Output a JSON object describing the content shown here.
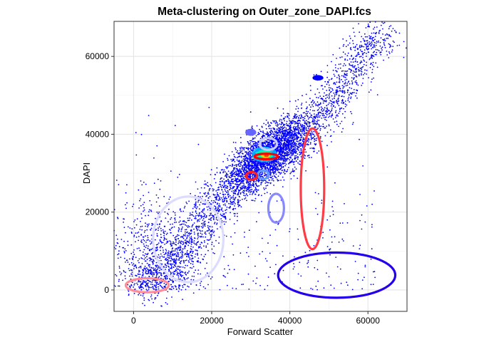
{
  "chart_data": {
    "type": "scatter",
    "title": "Meta-clustering on Outer_zone_DAPI.fcs",
    "xlabel": "Forward Scatter",
    "ylabel": "DAPI",
    "xlim": [
      -5000,
      70000
    ],
    "ylim": [
      -5500,
      69000
    ],
    "x_ticks": [
      0,
      20000,
      40000,
      60000
    ],
    "x_tick_labels": [
      "0",
      "20000",
      "40000",
      "60000"
    ],
    "y_ticks": [
      0,
      20000,
      40000,
      60000
    ],
    "y_tick_labels": [
      "0",
      "20000",
      "40000",
      "60000"
    ],
    "grid": true,
    "legend": "none",
    "point_color": "#0000FF",
    "density_core_colors": [
      "#00BFFF",
      "#00FFAA",
      "#FFD000",
      "#FF3000"
    ],
    "points": {
      "band": [
        [
          2000,
          1000
        ],
        [
          5000,
          2000
        ],
        [
          8000,
          4000
        ],
        [
          10000,
          7000
        ],
        [
          12000,
          9000
        ],
        [
          14000,
          12000
        ],
        [
          16000,
          15000
        ],
        [
          18000,
          18000
        ],
        [
          20000,
          21000
        ],
        [
          22000,
          23000
        ],
        [
          24000,
          25000
        ],
        [
          26000,
          27000
        ],
        [
          28000,
          29000
        ],
        [
          30000,
          31000
        ],
        [
          32000,
          32500
        ],
        [
          34000,
          33500
        ],
        [
          36000,
          35000
        ],
        [
          38000,
          36500
        ],
        [
          40000,
          38000
        ],
        [
          42000,
          39500
        ],
        [
          44000,
          41000
        ],
        [
          46000,
          43000
        ],
        [
          48000,
          45000
        ],
        [
          50000,
          47500
        ],
        [
          52000,
          50000
        ],
        [
          54000,
          53000
        ],
        [
          56000,
          56000
        ],
        [
          58000,
          60000
        ],
        [
          60000,
          63000
        ],
        [
          62000,
          65000
        ],
        [
          66000,
          65800
        ]
      ],
      "dense_region": {
        "x_center": 35000,
        "y_center": 35000,
        "x_spread": 5000,
        "y_spread": 3500,
        "tilt": 0.6
      },
      "low_left_cloud": {
        "x_center": 6000,
        "y_center": 9000,
        "x_spread": 6000,
        "y_spread": 8000
      }
    },
    "ellipses": [
      {
        "cx": 3500,
        "cy": 1200,
        "rx": 5500,
        "ry": 1800,
        "color": "#FF8C96"
      },
      {
        "cx": 14000,
        "cy": 13000,
        "rx": 9000,
        "ry": 11000,
        "color": "#DCDCFF"
      },
      {
        "cx": 36500,
        "cy": 21000,
        "rx": 2000,
        "ry": 3700,
        "color": "#8888FF"
      },
      {
        "cx": 45800,
        "cy": 26000,
        "rx": 3000,
        "ry": 15500,
        "color": "#FF3C46"
      },
      {
        "cx": 52000,
        "cy": 3800,
        "rx": 15000,
        "ry": 5800,
        "color": "#2200EE"
      },
      {
        "cx": 34500,
        "cy": 37500,
        "rx": 2200,
        "ry": 1500,
        "color": "#CCCCFF"
      },
      {
        "cx": 34000,
        "cy": 34300,
        "rx": 3000,
        "ry": 700,
        "color": "#FF0000"
      },
      {
        "cx": 33200,
        "cy": 29600,
        "rx": 1400,
        "ry": 1100,
        "color": "#6699FF"
      },
      {
        "cx": 30200,
        "cy": 29300,
        "rx": 1400,
        "ry": 1000,
        "color": "#FF2020"
      },
      {
        "cx": 47200,
        "cy": 54500,
        "rx": 1400,
        "ry": 700,
        "color": "#0000FF",
        "filled": true
      },
      {
        "cx": 30000,
        "cy": 40500,
        "rx": 1400,
        "ry": 900,
        "color": "#6666FF",
        "filled": true
      }
    ]
  }
}
